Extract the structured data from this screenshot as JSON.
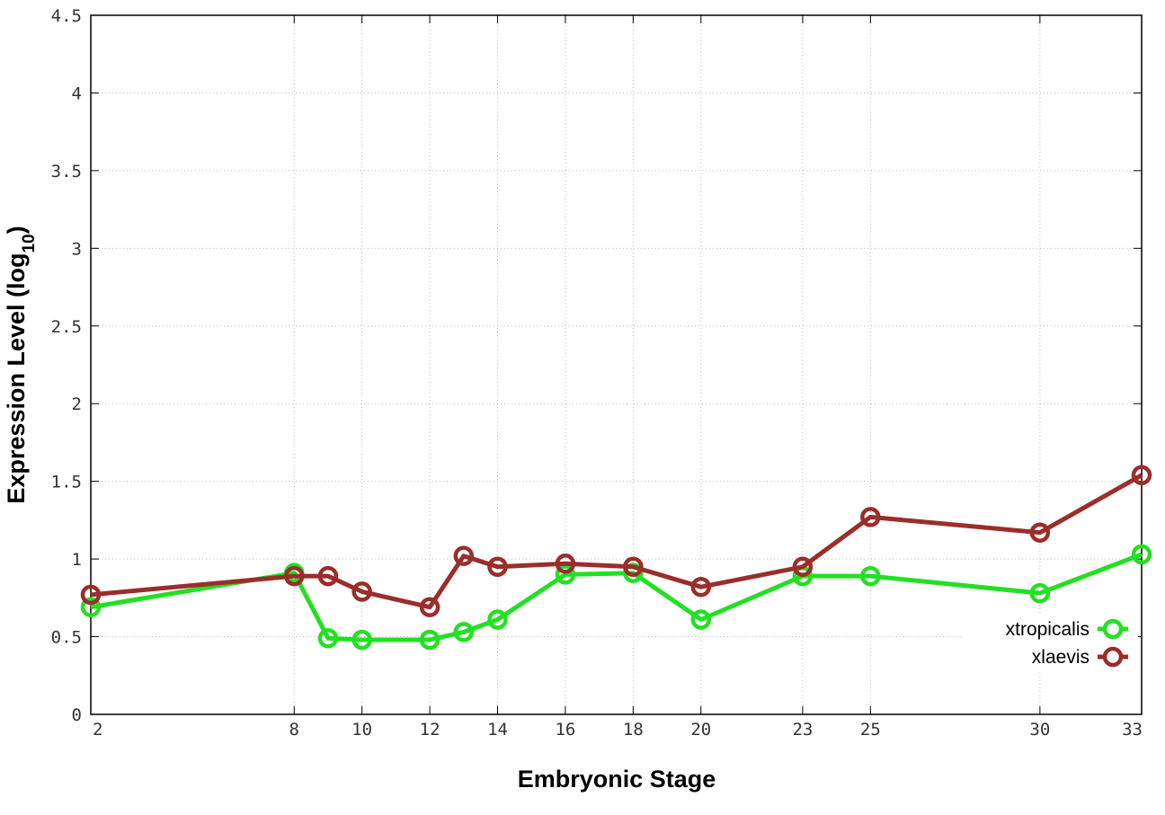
{
  "chart_data": {
    "type": "line",
    "xlabel": "Embryonic Stage",
    "ylabel": "Expression Level (log",
    "ylabel_sub": "10",
    "ylabel_end": ")",
    "x_ticks": [
      2,
      8,
      10,
      12,
      14,
      16,
      18,
      20,
      23,
      25,
      30,
      33
    ],
    "x_tick_labels": [
      "2",
      "8",
      "10",
      "12",
      "14",
      "16",
      "18",
      "20",
      "23",
      "25",
      "30",
      "33"
    ],
    "y_ticks": [
      0,
      0.5,
      1,
      1.5,
      2,
      2.5,
      3,
      3.5,
      4,
      4.5
    ],
    "y_tick_labels": [
      "0",
      "0.5",
      "1",
      "1.5",
      "2",
      "2.5",
      "3",
      "3.5",
      "4",
      "4.5"
    ],
    "xlim": [
      2,
      33
    ],
    "ylim": [
      0,
      4.5
    ],
    "grid": true,
    "legend_position": "bottom-right",
    "series": [
      {
        "name": "xtropicalis",
        "color": "#22e022",
        "x": [
          2,
          8,
          9,
          10,
          12,
          13,
          14,
          16,
          18,
          20,
          23,
          25,
          30,
          33
        ],
        "y": [
          0.69,
          0.91,
          0.49,
          0.48,
          0.48,
          0.53,
          0.61,
          0.9,
          0.91,
          0.61,
          0.89,
          0.89,
          0.78,
          1.03
        ]
      },
      {
        "name": "xlaevis",
        "color": "#9b2d2a",
        "x": [
          2,
          8,
          9,
          10,
          12,
          13,
          14,
          16,
          18,
          20,
          23,
          25,
          30,
          33
        ],
        "y": [
          0.77,
          0.89,
          0.89,
          0.79,
          0.69,
          1.02,
          0.95,
          0.97,
          0.95,
          0.82,
          0.95,
          1.27,
          1.17,
          1.54
        ]
      }
    ]
  }
}
